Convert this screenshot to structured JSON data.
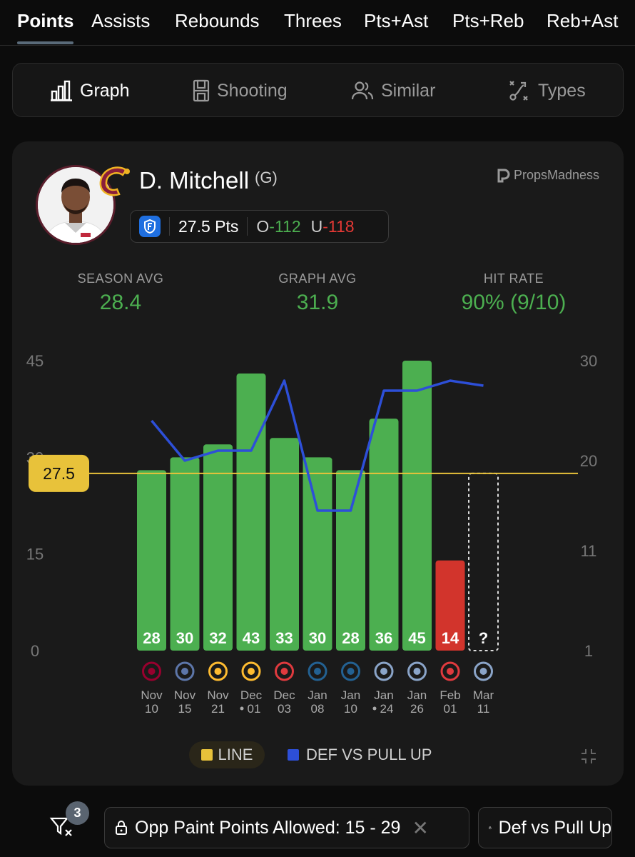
{
  "stat_tabs": [
    "Points",
    "Assists",
    "Rebounds",
    "Threes",
    "Pts+Ast",
    "Pts+Reb",
    "Reb+Ast"
  ],
  "active_stat_tab": "Points",
  "view_tabs": [
    {
      "label": "Graph",
      "icon": "bar-chart-icon",
      "active": true
    },
    {
      "label": "Shooting",
      "icon": "court-icon",
      "active": false
    },
    {
      "label": "Similar",
      "icon": "users-icon",
      "active": false
    },
    {
      "label": "Types",
      "icon": "play-diagram-icon",
      "active": false
    }
  ],
  "player": {
    "name": "D. Mitchell",
    "position": "(G)",
    "team_logo": "cavaliers-c-logo"
  },
  "brand": "PropsMadness",
  "line": {
    "value_label": "27.5 Pts",
    "over_prefix": "O",
    "over_odds": "-112",
    "under_prefix": "U",
    "under_odds": "-118",
    "book_color": "#1f6fe0"
  },
  "summary": [
    {
      "label": "SEASON AVG",
      "value": "28.4"
    },
    {
      "label": "GRAPH AVG",
      "value": "31.9"
    },
    {
      "label": "HIT RATE",
      "value": "90% (9/10)"
    }
  ],
  "chart_data": {
    "type": "bar",
    "line_value": 27.5,
    "line_label": "27.5",
    "left_axis": {
      "ticks": [
        0,
        15,
        30,
        45
      ],
      "ylim": [
        0,
        45
      ]
    },
    "right_axis": {
      "ticks": [
        1,
        11,
        20,
        30
      ],
      "ylim": [
        1,
        30
      ]
    },
    "games": [
      {
        "date_top": "Nov",
        "date_bottom": "10",
        "value": 28,
        "label": "28",
        "opponent_icon": "heat-logo",
        "def": 24,
        "flag": false
      },
      {
        "date_top": "Nov",
        "date_bottom": "15",
        "value": 30,
        "label": "30",
        "opponent_icon": "grizzlies-logo",
        "def": 20,
        "flag": false
      },
      {
        "date_top": "Nov",
        "date_bottom": "21",
        "value": 32,
        "label": "32",
        "opponent_icon": "pacers-logo",
        "def": 21,
        "flag": false
      },
      {
        "date_top": "Dec",
        "date_bottom": "01",
        "value": 43,
        "label": "43",
        "opponent_icon": "pacers-logo",
        "def": 21,
        "flag": true
      },
      {
        "date_top": "Dec",
        "date_bottom": "03",
        "value": 33,
        "label": "33",
        "opponent_icon": "trail-blazers-logo",
        "def": 28,
        "flag": false
      },
      {
        "date_top": "Jan",
        "date_bottom": "08",
        "value": 30,
        "label": "30",
        "opponent_icon": "timberwolves-logo",
        "def": 15,
        "flag": false
      },
      {
        "date_top": "Jan",
        "date_bottom": "10",
        "value": 28,
        "label": "28",
        "opponent_icon": "timberwolves-logo",
        "def": 15,
        "flag": false
      },
      {
        "date_top": "Jan",
        "date_bottom": "24",
        "value": 36,
        "label": "36",
        "opponent_icon": "magic-logo",
        "def": 27,
        "flag": true
      },
      {
        "date_top": "Jan",
        "date_bottom": "26",
        "value": 45,
        "label": "45",
        "opponent_icon": "magic-logo",
        "def": 27,
        "flag": false
      },
      {
        "date_top": "Feb",
        "date_bottom": "01",
        "value": 14,
        "label": "14",
        "opponent_icon": "trail-blazers-logo",
        "def": 28,
        "flag": false
      },
      {
        "date_top": "Mar",
        "date_bottom": "11",
        "value": null,
        "label": "?",
        "opponent_icon": "magic-logo",
        "def": 27.5,
        "flag": false
      }
    ],
    "hit_color": "#4caf50",
    "miss_color": "#d2342c",
    "def_color": "#2d4fd8",
    "line_color": "#e8c23a",
    "legend": [
      {
        "label": "LINE",
        "color": "#e8c23a"
      },
      {
        "label": "DEF VS PULL UP",
        "color": "#2d4fd8"
      }
    ]
  },
  "filters": {
    "count": "3",
    "chips": [
      "Opp Paint Points Allowed: 15 - 29",
      "Def vs Pull Up"
    ]
  }
}
